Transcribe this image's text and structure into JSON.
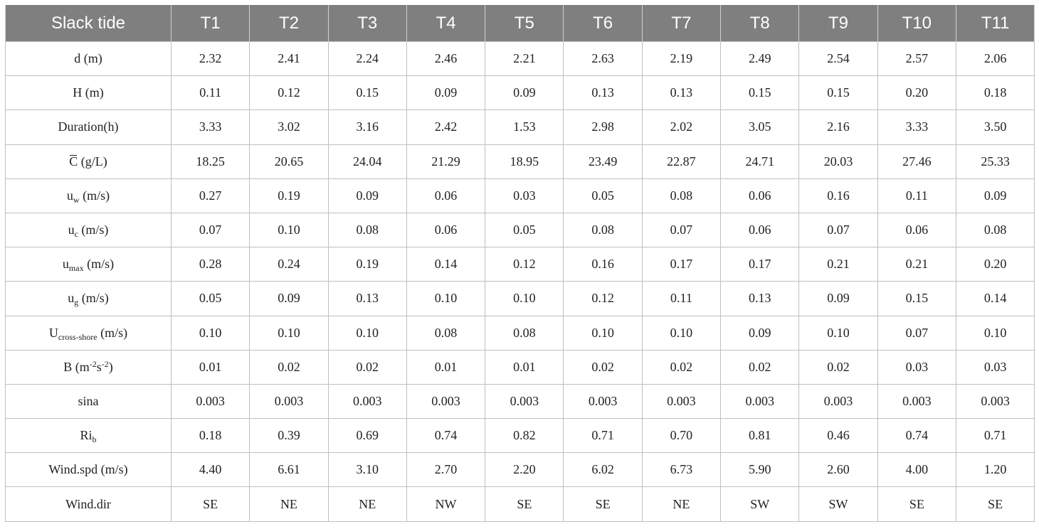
{
  "table": {
    "header": [
      "Slack tide",
      "T1",
      "T2",
      "T3",
      "T4",
      "T5",
      "T6",
      "T7",
      "T8",
      "T9",
      "T10",
      "T11"
    ],
    "rows": [
      {
        "label": {
          "base": "d (m)"
        },
        "values": [
          "2.32",
          "2.41",
          "2.24",
          "2.46",
          "2.21",
          "2.63",
          "2.19",
          "2.49",
          "2.54",
          "2.57",
          "2.06"
        ]
      },
      {
        "label": {
          "base": "H (m)"
        },
        "values": [
          "0.11",
          "0.12",
          "0.15",
          "0.09",
          "0.09",
          "0.13",
          "0.13",
          "0.15",
          "0.15",
          "0.20",
          "0.18"
        ]
      },
      {
        "label": {
          "base": "Duration(h)"
        },
        "values": [
          "3.33",
          "3.02",
          "3.16",
          "2.42",
          "1.53",
          "2.98",
          "2.02",
          "3.05",
          "2.16",
          "3.33",
          "3.50"
        ]
      },
      {
        "label": {
          "overbar": "C",
          "base": " (g/L)"
        },
        "values": [
          "18.25",
          "20.65",
          "24.04",
          "21.29",
          "18.95",
          "23.49",
          "22.87",
          "24.71",
          "20.03",
          "27.46",
          "25.33"
        ]
      },
      {
        "label": {
          "base": "u",
          "sub": "w",
          "tail": " (m/s)"
        },
        "values": [
          "0.27",
          "0.19",
          "0.09",
          "0.06",
          "0.03",
          "0.05",
          "0.08",
          "0.06",
          "0.16",
          "0.11",
          "0.09"
        ]
      },
      {
        "label": {
          "base": "u",
          "sub": "c",
          "tail": " (m/s)"
        },
        "values": [
          "0.07",
          "0.10",
          "0.08",
          "0.06",
          "0.05",
          "0.08",
          "0.07",
          "0.06",
          "0.07",
          "0.06",
          "0.08"
        ]
      },
      {
        "label": {
          "base": "u",
          "sub": "max",
          "tail": " (m/s)"
        },
        "values": [
          "0.28",
          "0.24",
          "0.19",
          "0.14",
          "0.12",
          "0.16",
          "0.17",
          "0.17",
          "0.21",
          "0.21",
          "0.20"
        ]
      },
      {
        "label": {
          "base": "u",
          "sub": "g",
          "tail": " (m/s)"
        },
        "values": [
          "0.05",
          "0.09",
          "0.13",
          "0.10",
          "0.10",
          "0.12",
          "0.11",
          "0.13",
          "0.09",
          "0.15",
          "0.14"
        ]
      },
      {
        "label": {
          "base": "U",
          "sub": "cross-shore",
          "tail": " (m/s)"
        },
        "values": [
          "0.10",
          "0.10",
          "0.10",
          "0.08",
          "0.08",
          "0.10",
          "0.10",
          "0.09",
          "0.10",
          "0.07",
          "0.10"
        ]
      },
      {
        "label": {
          "base": "B (m",
          "sup1": "-2",
          "mid": "s",
          "sup2": "-2",
          "tail": ")"
        },
        "values": [
          "0.01",
          "0.02",
          "0.02",
          "0.01",
          "0.01",
          "0.02",
          "0.02",
          "0.02",
          "0.02",
          "0.03",
          "0.03"
        ]
      },
      {
        "label": {
          "base": "sina"
        },
        "values": [
          "0.003",
          "0.003",
          "0.003",
          "0.003",
          "0.003",
          "0.003",
          "0.003",
          "0.003",
          "0.003",
          "0.003",
          "0.003"
        ]
      },
      {
        "label": {
          "base": "Ri",
          "sub": "b"
        },
        "values": [
          "0.18",
          "0.39",
          "0.69",
          "0.74",
          "0.82",
          "0.71",
          "0.70",
          "0.81",
          "0.46",
          "0.74",
          "0.71"
        ]
      },
      {
        "label": {
          "base": "Wind.spd (m/s)"
        },
        "values": [
          "4.40",
          "6.61",
          "3.10",
          "2.70",
          "2.20",
          "6.02",
          "6.73",
          "5.90",
          "2.60",
          "4.00",
          "1.20"
        ]
      },
      {
        "label": {
          "base": "Wind.dir"
        },
        "values": [
          "SE",
          "NE",
          "NE",
          "NW",
          "SE",
          "SE",
          "NE",
          "SW",
          "SW",
          "SE",
          "SE"
        ]
      }
    ]
  },
  "colors": {
    "header_bg": "#7f7f7f",
    "header_text": "#ffffff",
    "grid": "#bfbfbf"
  }
}
